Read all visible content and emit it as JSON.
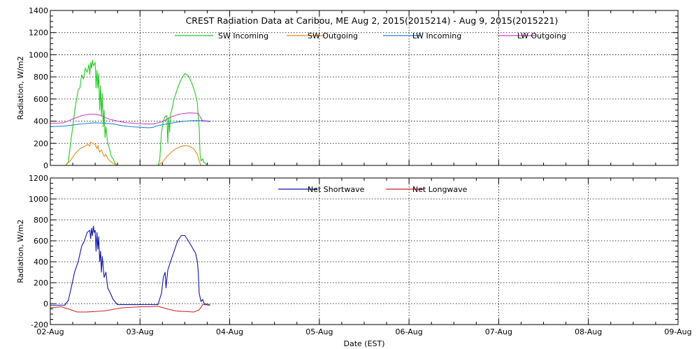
{
  "chart_data": [
    {
      "type": "line",
      "title": "CREST Radiation Data at Caribou, ME   Aug  2, 2015(2015214) - Aug  9, 2015(2015221)",
      "xlabel": "",
      "ylabel": "Radiation, W/m2",
      "x_unit": "days since 02-Aug",
      "xlim": [
        0,
        7
      ],
      "ylim": [
        0,
        1400
      ],
      "yticks": [
        0,
        200,
        400,
        600,
        800,
        1000,
        1200,
        1400
      ],
      "grid": true,
      "legend": "top-inside",
      "series": [
        {
          "name": "SW Incoming",
          "color": "#22cc22",
          "points": [
            [
              0.0,
              0
            ],
            [
              0.17,
              0
            ],
            [
              0.2,
              30
            ],
            [
              0.22,
              160
            ],
            [
              0.25,
              350
            ],
            [
              0.28,
              540
            ],
            [
              0.31,
              680
            ],
            [
              0.33,
              700
            ],
            [
              0.35,
              820
            ],
            [
              0.37,
              780
            ],
            [
              0.39,
              880
            ],
            [
              0.41,
              840
            ],
            [
              0.43,
              910
            ],
            [
              0.44,
              820
            ],
            [
              0.45,
              930
            ],
            [
              0.46,
              880
            ],
            [
              0.47,
              950
            ],
            [
              0.48,
              900
            ],
            [
              0.5,
              930
            ],
            [
              0.51,
              700
            ],
            [
              0.52,
              860
            ],
            [
              0.53,
              700
            ],
            [
              0.54,
              830
            ],
            [
              0.55,
              500
            ],
            [
              0.56,
              720
            ],
            [
              0.57,
              450
            ],
            [
              0.58,
              650
            ],
            [
              0.59,
              350
            ],
            [
              0.6,
              500
            ],
            [
              0.61,
              250
            ],
            [
              0.62,
              350
            ],
            [
              0.64,
              200
            ],
            [
              0.66,
              150
            ],
            [
              0.68,
              80
            ],
            [
              0.7,
              60
            ],
            [
              0.72,
              20
            ],
            [
              0.75,
              0
            ],
            [
              1.0,
              0
            ],
            [
              1.2,
              0
            ],
            [
              1.22,
              50
            ],
            [
              1.24,
              300
            ],
            [
              1.26,
              400
            ],
            [
              1.28,
              440
            ],
            [
              1.3,
              450
            ],
            [
              1.31,
              200
            ],
            [
              1.32,
              430
            ],
            [
              1.33,
              300
            ],
            [
              1.34,
              460
            ],
            [
              1.36,
              520
            ],
            [
              1.38,
              600
            ],
            [
              1.42,
              700
            ],
            [
              1.46,
              780
            ],
            [
              1.5,
              830
            ],
            [
              1.54,
              810
            ],
            [
              1.58,
              740
            ],
            [
              1.62,
              640
            ],
            [
              1.64,
              560
            ],
            [
              1.65,
              430
            ],
            [
              1.66,
              350
            ],
            [
              1.67,
              100
            ],
            [
              1.68,
              40
            ],
            [
              1.7,
              60
            ],
            [
              1.71,
              30
            ],
            [
              1.73,
              20
            ],
            [
              1.75,
              0
            ]
          ]
        },
        {
          "name": "SW Outgoing",
          "color": "#ee8822",
          "points": [
            [
              0.0,
              0
            ],
            [
              0.17,
              0
            ],
            [
              0.22,
              40
            ],
            [
              0.28,
              110
            ],
            [
              0.33,
              150
            ],
            [
              0.38,
              170
            ],
            [
              0.42,
              190
            ],
            [
              0.44,
              175
            ],
            [
              0.45,
              210
            ],
            [
              0.47,
              200
            ],
            [
              0.5,
              190
            ],
            [
              0.52,
              150
            ],
            [
              0.53,
              180
            ],
            [
              0.55,
              120
            ],
            [
              0.57,
              140
            ],
            [
              0.6,
              80
            ],
            [
              0.62,
              100
            ],
            [
              0.64,
              60
            ],
            [
              0.68,
              30
            ],
            [
              0.72,
              10
            ],
            [
              0.75,
              0
            ],
            [
              1.2,
              0
            ],
            [
              1.25,
              30
            ],
            [
              1.3,
              80
            ],
            [
              1.35,
              120
            ],
            [
              1.4,
              150
            ],
            [
              1.45,
              170
            ],
            [
              1.5,
              180
            ],
            [
              1.55,
              175
            ],
            [
              1.6,
              150
            ],
            [
              1.64,
              100
            ],
            [
              1.66,
              40
            ],
            [
              1.68,
              0
            ],
            [
              1.75,
              0
            ]
          ]
        },
        {
          "name": "LW Incoming",
          "color": "#2288cc",
          "points": [
            [
              0.0,
              350
            ],
            [
              0.15,
              355
            ],
            [
              0.2,
              360
            ],
            [
              0.3,
              370
            ],
            [
              0.4,
              380
            ],
            [
              0.5,
              385
            ],
            [
              0.6,
              382
            ],
            [
              0.7,
              375
            ],
            [
              0.8,
              360
            ],
            [
              0.9,
              350
            ],
            [
              1.0,
              345
            ],
            [
              1.1,
              340
            ],
            [
              1.15,
              345
            ],
            [
              1.2,
              360
            ],
            [
              1.3,
              375
            ],
            [
              1.4,
              390
            ],
            [
              1.5,
              400
            ],
            [
              1.6,
              405
            ],
            [
              1.7,
              405
            ],
            [
              1.78,
              400
            ]
          ]
        },
        {
          "name": "LW Outgoing",
          "color": "#cc44cc",
          "points": [
            [
              0.0,
              380
            ],
            [
              0.15,
              385
            ],
            [
              0.25,
              420
            ],
            [
              0.35,
              450
            ],
            [
              0.45,
              465
            ],
            [
              0.55,
              455
            ],
            [
              0.65,
              420
            ],
            [
              0.75,
              400
            ],
            [
              0.85,
              385
            ],
            [
              0.95,
              380
            ],
            [
              1.05,
              375
            ],
            [
              1.15,
              375
            ],
            [
              1.25,
              395
            ],
            [
              1.35,
              440
            ],
            [
              1.45,
              465
            ],
            [
              1.55,
              475
            ],
            [
              1.65,
              470
            ],
            [
              1.7,
              400
            ],
            [
              1.73,
              400
            ],
            [
              1.78,
              395
            ]
          ]
        }
      ]
    },
    {
      "type": "line",
      "xlabel": "Date (EST)",
      "ylabel": "Radiation, W/m2",
      "x_unit": "days since 02-Aug",
      "xlim": [
        0,
        7
      ],
      "ylim": [
        -200,
        1200
      ],
      "yticks": [
        -200,
        0,
        200,
        400,
        600,
        800,
        1000,
        1200
      ],
      "xticks": [
        "02-Aug",
        "03-Aug",
        "04-Aug",
        "05-Aug",
        "06-Aug",
        "07-Aug",
        "08-Aug",
        "09-Aug"
      ],
      "grid": true,
      "legend": "top-inside",
      "series": [
        {
          "name": "Net Shortwave",
          "color": "#1111aa",
          "points": [
            [
              0.0,
              -15
            ],
            [
              0.16,
              -15
            ],
            [
              0.2,
              30
            ],
            [
              0.23,
              140
            ],
            [
              0.27,
              300
            ],
            [
              0.31,
              400
            ],
            [
              0.35,
              550
            ],
            [
              0.38,
              600
            ],
            [
              0.41,
              680
            ],
            [
              0.44,
              700
            ],
            [
              0.45,
              620
            ],
            [
              0.46,
              720
            ],
            [
              0.47,
              650
            ],
            [
              0.48,
              740
            ],
            [
              0.49,
              680
            ],
            [
              0.5,
              700
            ],
            [
              0.51,
              500
            ],
            [
              0.52,
              680
            ],
            [
              0.53,
              520
            ],
            [
              0.54,
              640
            ],
            [
              0.55,
              400
            ],
            [
              0.56,
              500
            ],
            [
              0.57,
              300
            ],
            [
              0.58,
              450
            ],
            [
              0.6,
              250
            ],
            [
              0.62,
              300
            ],
            [
              0.64,
              150
            ],
            [
              0.67,
              100
            ],
            [
              0.7,
              40
            ],
            [
              0.75,
              -10
            ],
            [
              1.2,
              -10
            ],
            [
              1.24,
              100
            ],
            [
              1.26,
              250
            ],
            [
              1.28,
              300
            ],
            [
              1.29,
              150
            ],
            [
              1.31,
              320
            ],
            [
              1.34,
              400
            ],
            [
              1.38,
              500
            ],
            [
              1.42,
              600
            ],
            [
              1.46,
              650
            ],
            [
              1.5,
              650
            ],
            [
              1.54,
              600
            ],
            [
              1.58,
              540
            ],
            [
              1.62,
              480
            ],
            [
              1.64,
              400
            ],
            [
              1.65,
              300
            ],
            [
              1.66,
              100
            ],
            [
              1.68,
              20
            ],
            [
              1.7,
              40
            ],
            [
              1.72,
              -10
            ],
            [
              1.78,
              -15
            ]
          ]
        },
        {
          "name": "Net Longwave",
          "color": "#cc2222",
          "points": [
            [
              0.0,
              -40
            ],
            [
              0.12,
              -30
            ],
            [
              0.2,
              -50
            ],
            [
              0.3,
              -80
            ],
            [
              0.4,
              -80
            ],
            [
              0.5,
              -75
            ],
            [
              0.6,
              -70
            ],
            [
              0.7,
              -55
            ],
            [
              0.8,
              -40
            ],
            [
              0.9,
              -35
            ],
            [
              1.0,
              -30
            ],
            [
              1.1,
              -30
            ],
            [
              1.2,
              -25
            ],
            [
              1.3,
              -50
            ],
            [
              1.4,
              -70
            ],
            [
              1.5,
              -75
            ],
            [
              1.6,
              -80
            ],
            [
              1.66,
              -60
            ],
            [
              1.7,
              -10
            ],
            [
              1.73,
              0
            ],
            [
              1.78,
              -10
            ]
          ]
        }
      ]
    }
  ]
}
